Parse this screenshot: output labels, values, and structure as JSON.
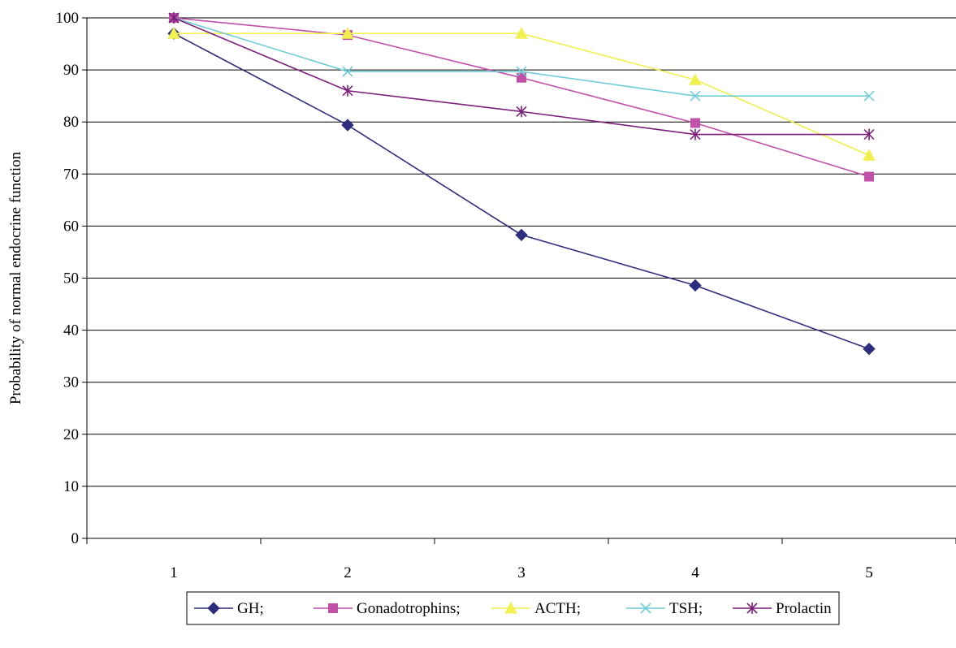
{
  "chart_data": {
    "type": "line",
    "title": "",
    "xlabel": "",
    "ylabel": "Probability of normal endocrine function",
    "x": [
      1,
      2,
      3,
      4,
      5
    ],
    "ylim": [
      0,
      100
    ],
    "yticks": [
      0,
      10,
      20,
      30,
      40,
      50,
      60,
      70,
      80,
      90,
      100
    ],
    "grid": "horizontal",
    "legend_position": "bottom",
    "series": [
      {
        "name": "GH;",
        "color": "#2e2e7e",
        "marker": "diamond",
        "values": [
          97,
          79.4,
          58.3,
          48.6,
          36.4
        ]
      },
      {
        "name": "Gonadotrophins;",
        "color": "#c050a8",
        "marker": "square",
        "values": [
          100,
          96.7,
          88.5,
          79.8,
          69.5
        ]
      },
      {
        "name": "ACTH;",
        "color": "#f0f050",
        "marker": "triangle",
        "values": [
          97,
          97,
          97,
          88.1,
          73.6
        ]
      },
      {
        "name": "TSH;",
        "color": "#70ccd6",
        "marker": "x",
        "values": [
          100,
          89.7,
          89.7,
          85,
          85
        ]
      },
      {
        "name": "Prolactin",
        "color": "#7b1f7b",
        "marker": "star",
        "values": [
          100,
          86,
          82,
          77.6,
          77.6
        ]
      }
    ]
  }
}
